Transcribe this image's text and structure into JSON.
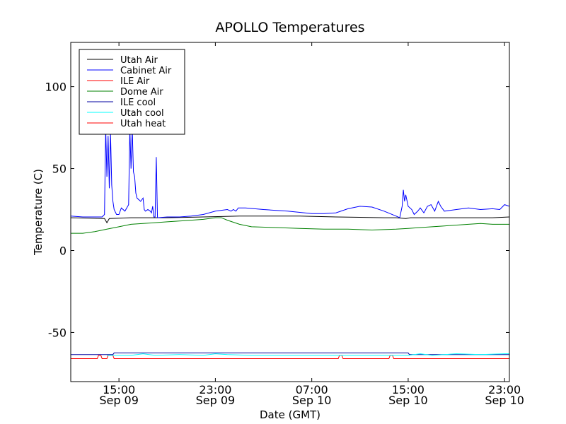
{
  "chart_data": {
    "type": "line",
    "title": "APOLLO Temperatures",
    "xlabel": "Date (GMT)",
    "ylabel": "Temperature (C)",
    "x_unit": "hours from Sep 09 11:00 GMT",
    "xlim": [
      0,
      36.4
    ],
    "ylim": [
      -80,
      127
    ],
    "grid": false,
    "legend_position": "top-left",
    "y_ticks": [
      {
        "value": 100,
        "label": "100"
      },
      {
        "value": 50,
        "label": "50"
      },
      {
        "value": 0,
        "label": "0"
      },
      {
        "value": -50,
        "label": "-50"
      }
    ],
    "x_ticks": [
      {
        "value": 4,
        "line1": "15:00",
        "line2": "Sep 09"
      },
      {
        "value": 12,
        "line1": "23:00",
        "line2": "Sep 09"
      },
      {
        "value": 20,
        "line1": "07:00",
        "line2": "Sep 10"
      },
      {
        "value": 28,
        "line1": "15:00",
        "line2": "Sep 10"
      },
      {
        "value": 36,
        "line1": "23:00",
        "line2": "Sep 10"
      }
    ],
    "series": [
      {
        "name": "Utah Air",
        "color": "#000000",
        "points": [
          [
            0,
            20
          ],
          [
            2.8,
            19.5
          ],
          [
            3.0,
            17
          ],
          [
            3.2,
            19.5
          ],
          [
            5,
            20
          ],
          [
            8,
            20
          ],
          [
            11,
            20.5
          ],
          [
            14,
            21
          ],
          [
            16,
            21
          ],
          [
            19,
            21
          ],
          [
            22,
            20.5
          ],
          [
            26,
            20
          ],
          [
            27,
            20
          ],
          [
            27.8,
            19.5
          ],
          [
            28.2,
            20
          ],
          [
            30,
            20
          ],
          [
            33,
            20
          ],
          [
            35,
            20
          ],
          [
            36.4,
            20.5
          ]
        ]
      },
      {
        "name": "Cabinet Air",
        "color": "#0000ff",
        "points": [
          [
            0,
            21
          ],
          [
            1,
            20.5
          ],
          [
            2.6,
            20.5
          ],
          [
            2.8,
            22
          ],
          [
            2.9,
            75
          ],
          [
            3.0,
            45
          ],
          [
            3.1,
            70
          ],
          [
            3.2,
            38
          ],
          [
            3.3,
            72
          ],
          [
            3.4,
            40
          ],
          [
            3.5,
            30
          ],
          [
            3.6,
            25
          ],
          [
            3.8,
            22
          ],
          [
            4.0,
            22
          ],
          [
            4.2,
            26
          ],
          [
            4.5,
            24
          ],
          [
            4.8,
            28
          ],
          [
            4.9,
            75
          ],
          [
            5.0,
            50
          ],
          [
            5.1,
            75
          ],
          [
            5.2,
            48
          ],
          [
            5.3,
            45
          ],
          [
            5.4,
            35
          ],
          [
            5.5,
            32
          ],
          [
            5.8,
            30
          ],
          [
            6.0,
            32
          ],
          [
            6.1,
            25
          ],
          [
            6.2,
            24
          ],
          [
            6.4,
            25
          ],
          [
            6.6,
            24
          ],
          [
            6.7,
            23
          ],
          [
            6.8,
            27
          ],
          [
            6.9,
            20.5
          ],
          [
            7.0,
            20.5
          ],
          [
            7.1,
            57
          ],
          [
            7.2,
            20
          ],
          [
            8,
            20.5
          ],
          [
            9,
            20.5
          ],
          [
            10,
            21
          ],
          [
            11,
            22
          ],
          [
            12,
            24
          ],
          [
            13,
            25
          ],
          [
            13.3,
            24
          ],
          [
            13.5,
            25
          ],
          [
            13.7,
            24
          ],
          [
            13.9,
            26
          ],
          [
            14.5,
            26
          ],
          [
            16,
            25
          ],
          [
            18,
            24
          ],
          [
            20,
            22.5
          ],
          [
            21,
            22.5
          ],
          [
            22,
            23
          ],
          [
            23,
            25.5
          ],
          [
            24,
            27
          ],
          [
            25,
            26.5
          ],
          [
            26,
            24
          ],
          [
            27,
            21
          ],
          [
            27.3,
            20
          ],
          [
            27.5,
            27
          ],
          [
            27.6,
            37
          ],
          [
            27.7,
            30
          ],
          [
            27.8,
            34
          ],
          [
            28,
            27
          ],
          [
            28.3,
            25
          ],
          [
            28.5,
            22
          ],
          [
            28.8,
            24
          ],
          [
            29,
            26
          ],
          [
            29.3,
            23
          ],
          [
            29.6,
            27
          ],
          [
            29.9,
            28
          ],
          [
            30.2,
            24
          ],
          [
            30.5,
            30
          ],
          [
            30.7,
            27
          ],
          [
            31,
            24
          ],
          [
            32,
            25
          ],
          [
            33,
            26
          ],
          [
            34,
            25
          ],
          [
            35,
            25.5
          ],
          [
            35.6,
            25
          ],
          [
            36,
            28
          ],
          [
            36.4,
            27
          ]
        ]
      },
      {
        "name": "ILE Air",
        "color": "#ff0000",
        "points": [
          [
            0,
            -66
          ],
          [
            2.2,
            -66
          ],
          [
            2.3,
            -64
          ],
          [
            2.5,
            -64
          ],
          [
            2.6,
            -66
          ],
          [
            3.0,
            -66
          ],
          [
            3.1,
            -64
          ],
          [
            3.5,
            -64
          ],
          [
            3.6,
            -66
          ],
          [
            22.2,
            -66
          ],
          [
            22.3,
            -64
          ],
          [
            22.5,
            -64
          ],
          [
            22.6,
            -66
          ],
          [
            26.4,
            -66
          ],
          [
            26.5,
            -64
          ],
          [
            26.7,
            -64
          ],
          [
            26.8,
            -66
          ],
          [
            36.4,
            -66
          ]
        ]
      },
      {
        "name": "Dome Air",
        "color": "#008000",
        "points": [
          [
            0,
            10.5
          ],
          [
            1,
            10.5
          ],
          [
            2,
            11.5
          ],
          [
            3,
            13
          ],
          [
            4,
            14.5
          ],
          [
            5,
            16
          ],
          [
            6,
            16.5
          ],
          [
            7,
            17
          ],
          [
            8,
            17.5
          ],
          [
            9,
            18
          ],
          [
            10,
            18.5
          ],
          [
            11,
            19
          ],
          [
            12,
            20
          ],
          [
            12.5,
            20
          ],
          [
            13,
            18.5
          ],
          [
            14,
            16
          ],
          [
            15,
            14.5
          ],
          [
            17,
            14
          ],
          [
            19,
            13.5
          ],
          [
            21,
            13
          ],
          [
            23,
            13
          ],
          [
            25,
            12.5
          ],
          [
            27,
            13
          ],
          [
            28,
            13.5
          ],
          [
            29,
            14
          ],
          [
            31,
            15
          ],
          [
            33,
            16
          ],
          [
            34,
            16.5
          ],
          [
            35,
            16
          ],
          [
            36.4,
            16
          ]
        ]
      },
      {
        "name": "ILE cool",
        "color": "#0000a0",
        "points": [
          [
            0,
            -63.5
          ],
          [
            3.5,
            -63.5
          ],
          [
            3.6,
            -62.5
          ],
          [
            28,
            -62.5
          ],
          [
            28.1,
            -63.5
          ],
          [
            36.4,
            -63.5
          ]
        ]
      },
      {
        "name": "Utah cool",
        "color": "#00ffff",
        "points": [
          [
            3,
            -64
          ],
          [
            5,
            -64
          ],
          [
            6,
            -63
          ],
          [
            7,
            -64
          ],
          [
            9,
            -63.5
          ],
          [
            11,
            -64
          ],
          [
            12,
            -63
          ],
          [
            13,
            -63.5
          ],
          [
            15,
            -64
          ],
          [
            19,
            -64
          ],
          [
            23,
            -64
          ],
          [
            27,
            -64
          ],
          [
            28,
            -64
          ],
          [
            29,
            -63
          ],
          [
            30,
            -64
          ],
          [
            32,
            -63
          ],
          [
            34,
            -63.5
          ],
          [
            36,
            -63
          ],
          [
            36.4,
            -63
          ]
        ]
      },
      {
        "name": "Utah heat",
        "color": "#ff0000",
        "points": []
      }
    ]
  }
}
